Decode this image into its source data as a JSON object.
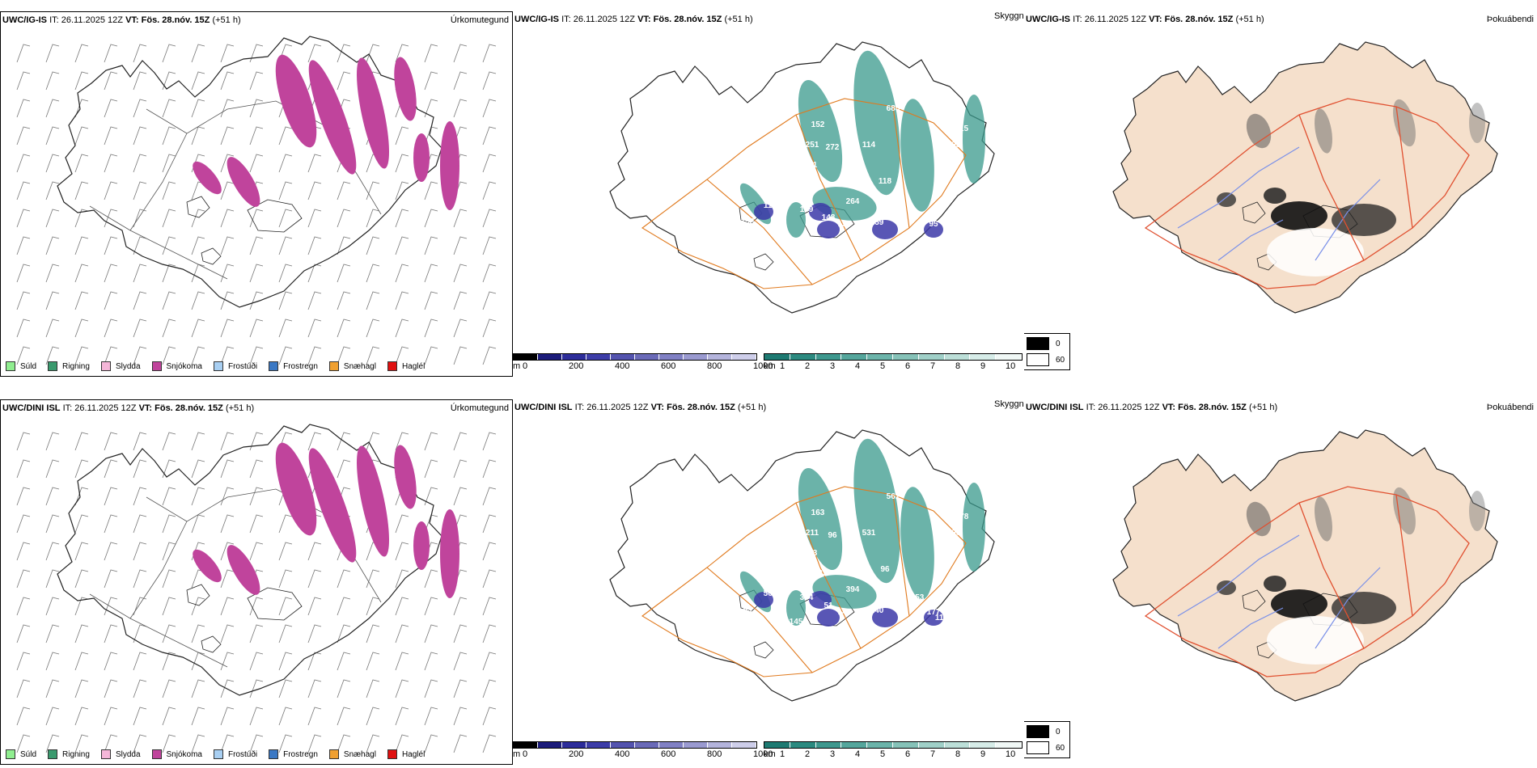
{
  "rows": [
    {
      "model": "UWC/IG-IS",
      "it_label": "IT:",
      "it_value": "26.11.2025 12Z",
      "vt_label": "VT:",
      "vt_value": "Fös. 28.nóv. 15Z",
      "lead": "(+51 h)",
      "cloud_labels": [
        "685",
        "152",
        "251",
        "272",
        "114",
        "151",
        "115",
        "395",
        "360",
        "118",
        "264",
        "110",
        "159",
        "148",
        "158",
        "150",
        "159",
        "95"
      ]
    },
    {
      "model": "UWC/DINI ISL",
      "it_label": "IT:",
      "it_value": "26.11.2025 12Z",
      "vt_label": "VT:",
      "vt_value": "Fös. 28.nóv. 15Z",
      "lead": "(+51 h)",
      "cloud_labels": [
        "561",
        "163",
        "211",
        "96",
        "531",
        "123",
        "478",
        "296",
        "280",
        "96",
        "394",
        "561",
        "304",
        "51",
        "53",
        "145",
        "140",
        "177",
        "183",
        "153",
        "113",
        "133",
        "145",
        "123"
      ]
    }
  ],
  "titles": {
    "precip": "Úrkomutegund",
    "cloud": "Skyggni",
    "fog": "Þokuábendi"
  },
  "precip_legend": [
    {
      "label": "Súld",
      "color": "#90ee90"
    },
    {
      "label": "Rigning",
      "color": "#3a9a6e"
    },
    {
      "label": "Slydda",
      "color": "#f4b6d8"
    },
    {
      "label": "Snjókoma",
      "color": "#c0449c"
    },
    {
      "label": "Frostúði",
      "color": "#a8cff2"
    },
    {
      "label": "Frostregn",
      "color": "#3a78c4"
    },
    {
      "label": "Snæhagl",
      "color": "#f0a030"
    },
    {
      "label": "Haglél",
      "color": "#e01010"
    }
  ],
  "cloudbase_bar": {
    "unit": "m",
    "ticks": [
      "0",
      "200",
      "400",
      "600",
      "800",
      "1000"
    ]
  },
  "visibility_bar": {
    "unit": "km",
    "ticks": [
      "1",
      "2",
      "3",
      "4",
      "5",
      "6",
      "7",
      "8",
      "9",
      "10"
    ]
  },
  "fog_legend": {
    "values": [
      "0",
      "60"
    ]
  },
  "colors": {
    "snow": "#c0449c",
    "teal": "#3a9a8c",
    "blue": "#3c38a8",
    "road": "#e07a1e",
    "land_fog": "#f5e0cc",
    "river": "#7a90e8"
  }
}
